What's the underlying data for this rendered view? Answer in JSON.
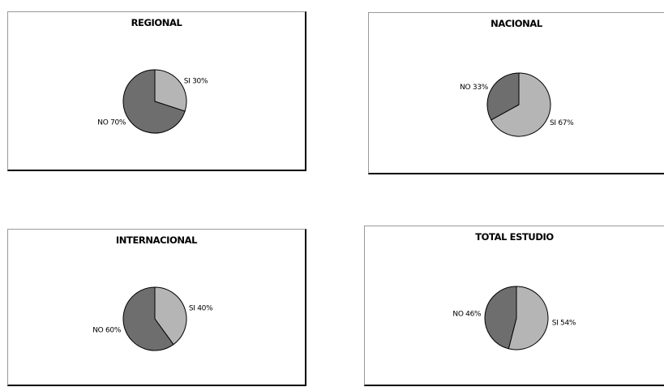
{
  "chart_data": [
    {
      "type": "pie",
      "title": "REGIONAL",
      "slices": [
        {
          "label": "SI",
          "value": 30,
          "display": "SI 30%",
          "color": "#b5b5b5"
        },
        {
          "label": "NO",
          "value": 70,
          "display": "NO 70%",
          "color": "#6e6e6e"
        }
      ]
    },
    {
      "type": "pie",
      "title": "NACIONAL",
      "slices": [
        {
          "label": "SI",
          "value": 67,
          "display": "SI 67%",
          "color": "#b5b5b5"
        },
        {
          "label": "NO",
          "value": 33,
          "display": "NO 33%",
          "color": "#6e6e6e"
        }
      ]
    },
    {
      "type": "pie",
      "title": "INTERNACIONAL",
      "slices": [
        {
          "label": "SI",
          "value": 40,
          "display": "SI 40%",
          "color": "#b5b5b5"
        },
        {
          "label": "NO",
          "value": 60,
          "display": "NO 60%",
          "color": "#6e6e6e"
        }
      ]
    },
    {
      "type": "pie",
      "title": "TOTAL ESTUDIO",
      "slices": [
        {
          "label": "SI",
          "value": 54,
          "display": "SI 54%",
          "color": "#b5b5b5"
        },
        {
          "label": "NO",
          "value": 46,
          "display": "NO 46%",
          "color": "#6e6e6e"
        }
      ]
    }
  ]
}
